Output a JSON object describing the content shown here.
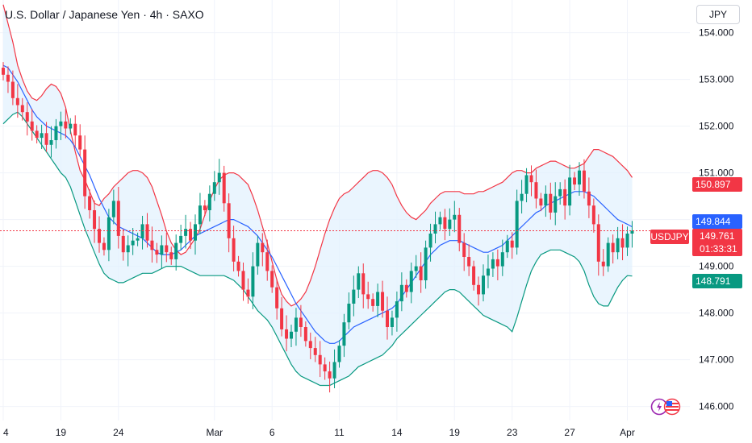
{
  "header": {
    "title": "U.S. Dollar / Japanese Yen · 4h · SAXO",
    "currency": "JPY"
  },
  "price_tags": {
    "upper_band": "150.897",
    "middle_band": "149.844",
    "symbol": "USDJPY",
    "last_price": "149.761",
    "countdown": "01:33:31",
    "lower_band": "148.791"
  },
  "colors": {
    "up": "#089981",
    "down": "#f23645",
    "upper_band": "#f23645",
    "middle_band": "#2962ff",
    "lower_band": "#089981",
    "band_fill": "#e3f2fd",
    "grid": "#f0f3fa",
    "axis_text": "#131722"
  },
  "chart_data": {
    "type": "candlestick",
    "title": "U.S. Dollar / Japanese Yen · 4h · SAXO",
    "ylim": [
      145.7,
      154.7
    ],
    "y_ticks": [
      154.0,
      153.0,
      152.0,
      151.0,
      150.0,
      149.0,
      148.0,
      147.0,
      146.0
    ],
    "y_tick_labels": [
      "154.000",
      "153.000",
      "152.000",
      "151.000",
      "150.000",
      "149.000",
      "148.000",
      "147.000",
      "146.000"
    ],
    "x_ticks": [
      {
        "label": "4",
        "index": 0
      },
      {
        "label": "19",
        "index": 12
      },
      {
        "label": "24",
        "index": 24
      },
      {
        "label": "Mar",
        "index": 44
      },
      {
        "label": "6",
        "index": 56
      },
      {
        "label": "11",
        "index": 70
      },
      {
        "label": "14",
        "index": 82
      },
      {
        "label": "19",
        "index": 94
      },
      {
        "label": "23",
        "index": 106
      },
      {
        "label": "27",
        "index": 118
      },
      {
        "label": "Apr",
        "index": 130
      }
    ],
    "grid": true,
    "current_price": 149.761,
    "candles_close": [
      153.1,
      152.95,
      152.6,
      152.45,
      152.3,
      152.1,
      151.9,
      151.75,
      151.85,
      151.6,
      151.7,
      152.0,
      152.1,
      151.95,
      152.05,
      151.8,
      151.5,
      150.5,
      150.2,
      149.8,
      149.5,
      149.35,
      150.05,
      150.4,
      149.65,
      149.3,
      149.45,
      149.55,
      149.6,
      149.9,
      149.55,
      149.35,
      149.25,
      149.45,
      149.3,
      149.15,
      149.5,
      149.65,
      149.8,
      149.55,
      149.9,
      150.3,
      150.2,
      150.55,
      150.8,
      151.0,
      150.35,
      149.6,
      149.1,
      148.9,
      148.5,
      148.35,
      149.0,
      149.5,
      149.3,
      148.9,
      148.55,
      148.1,
      147.65,
      147.45,
      147.6,
      147.9,
      147.7,
      147.4,
      147.25,
      147.1,
      146.9,
      146.75,
      146.6,
      146.95,
      147.3,
      147.8,
      148.2,
      148.5,
      148.85,
      148.4,
      148.3,
      148.15,
      148.45,
      148.05,
      147.7,
      147.9,
      148.25,
      148.6,
      148.45,
      148.9,
      149.0,
      148.7,
      149.4,
      149.7,
      149.9,
      150.05,
      149.8,
      150.0,
      150.1,
      149.5,
      149.2,
      149.0,
      148.6,
      148.4,
      148.8,
      148.95,
      149.15,
      149.0,
      149.3,
      149.55,
      149.4,
      150.4,
      150.55,
      150.95,
      150.8,
      150.45,
      150.3,
      150.55,
      150.15,
      150.5,
      150.65,
      150.3,
      150.9,
      150.75,
      151.05,
      150.6,
      150.3,
      149.9,
      149.1,
      149.0,
      149.5,
      149.3,
      149.6,
      149.4,
      149.7,
      149.761
    ],
    "upper_band": [
      154.6,
      154.2,
      153.8,
      153.3,
      153.0,
      152.75,
      152.6,
      152.55,
      152.65,
      152.8,
      152.9,
      152.85,
      152.7,
      152.4,
      151.9,
      151.45,
      151.05,
      150.85,
      150.6,
      150.35,
      150.3,
      150.45,
      150.55,
      150.7,
      150.8,
      150.9,
      151.0,
      151.05,
      151.05,
      151.0,
      150.9,
      150.7,
      150.4,
      150.1,
      149.75,
      149.5,
      149.35,
      149.25,
      149.3,
      149.45,
      149.6,
      149.8,
      150.1,
      150.4,
      150.65,
      150.85,
      150.95,
      151.0,
      151.0,
      150.95,
      150.85,
      150.75,
      150.5,
      150.2,
      149.85,
      149.5,
      149.1,
      148.7,
      148.4,
      148.25,
      148.15,
      148.2,
      148.3,
      148.45,
      148.7,
      149.0,
      149.35,
      149.7,
      150.0,
      150.25,
      150.45,
      150.55,
      150.6,
      150.7,
      150.8,
      150.9,
      151.0,
      151.05,
      151.05,
      151.0,
      150.9,
      150.75,
      150.5,
      150.3,
      150.15,
      150.05,
      150.0,
      150.1,
      150.2,
      150.35,
      150.45,
      150.55,
      150.6,
      150.6,
      150.6,
      150.6,
      150.55,
      150.55,
      150.55,
      150.6,
      150.6,
      150.65,
      150.7,
      150.75,
      150.8,
      150.9,
      151.0,
      151.05,
      151.05,
      151.0,
      151.0,
      151.1,
      151.15,
      151.2,
      151.25,
      151.25,
      151.2,
      151.15,
      151.1,
      151.1,
      151.15,
      151.2,
      151.35,
      151.5,
      151.5,
      151.45,
      151.4,
      151.35,
      151.25,
      151.15,
      151.05,
      150.9
    ],
    "middle_band": [
      153.3,
      153.25,
      153.1,
      152.95,
      152.75,
      152.55,
      152.35,
      152.2,
      152.1,
      152.0,
      151.95,
      151.9,
      151.85,
      151.8,
      151.7,
      151.55,
      151.35,
      151.15,
      150.95,
      150.7,
      150.45,
      150.25,
      150.05,
      149.95,
      149.85,
      149.8,
      149.75,
      149.7,
      149.65,
      149.6,
      149.5,
      149.4,
      149.3,
      149.25,
      149.25,
      149.25,
      149.3,
      149.35,
      149.45,
      149.55,
      149.65,
      149.7,
      149.75,
      149.8,
      149.85,
      149.9,
      149.95,
      150.0,
      150.0,
      149.95,
      149.9,
      149.85,
      149.75,
      149.65,
      149.5,
      149.35,
      149.2,
      149.0,
      148.8,
      148.6,
      148.4,
      148.2,
      148.05,
      147.9,
      147.75,
      147.6,
      147.5,
      147.4,
      147.35,
      147.35,
      147.4,
      147.5,
      147.6,
      147.7,
      147.75,
      147.8,
      147.85,
      147.9,
      147.95,
      148.0,
      148.05,
      148.1,
      148.2,
      148.35,
      148.5,
      148.65,
      148.8,
      148.95,
      149.1,
      149.25,
      149.35,
      149.45,
      149.5,
      149.55,
      149.55,
      149.55,
      149.5,
      149.45,
      149.4,
      149.35,
      149.3,
      149.3,
      149.35,
      149.4,
      149.45,
      149.55,
      149.65,
      149.75,
      149.85,
      149.95,
      150.05,
      150.15,
      150.2,
      150.3,
      150.35,
      150.4,
      150.45,
      150.5,
      150.55,
      150.6,
      150.6,
      150.6,
      150.55,
      150.5,
      150.4,
      150.3,
      150.2,
      150.1,
      150.0,
      149.95,
      149.9,
      149.844
    ],
    "lower_band": [
      152.05,
      152.15,
      152.25,
      152.3,
      152.2,
      152.05,
      151.9,
      151.75,
      151.6,
      151.45,
      151.3,
      151.15,
      151.0,
      150.9,
      150.7,
      150.4,
      150.1,
      149.8,
      149.55,
      149.3,
      149.05,
      148.85,
      148.75,
      148.7,
      148.65,
      148.65,
      148.7,
      148.75,
      148.8,
      148.85,
      148.85,
      148.85,
      148.9,
      148.95,
      149.0,
      149.0,
      149.0,
      149.0,
      148.95,
      148.9,
      148.85,
      148.8,
      148.8,
      148.8,
      148.8,
      148.8,
      148.8,
      148.75,
      148.7,
      148.6,
      148.5,
      148.35,
      148.2,
      148.05,
      147.95,
      147.85,
      147.7,
      147.5,
      147.3,
      147.1,
      146.9,
      146.75,
      146.65,
      146.6,
      146.55,
      146.5,
      146.45,
      146.45,
      146.45,
      146.5,
      146.55,
      146.6,
      146.65,
      146.75,
      146.85,
      146.9,
      146.95,
      147.0,
      147.05,
      147.1,
      147.2,
      147.3,
      147.45,
      147.55,
      147.65,
      147.75,
      147.85,
      147.95,
      148.05,
      148.15,
      148.25,
      148.35,
      148.45,
      148.5,
      148.5,
      148.45,
      148.35,
      148.25,
      148.15,
      148.05,
      147.95,
      147.9,
      147.85,
      147.8,
      147.75,
      147.7,
      147.6,
      147.9,
      148.25,
      148.6,
      148.9,
      149.1,
      149.25,
      149.3,
      149.35,
      149.35,
      149.35,
      149.3,
      149.25,
      149.2,
      149.1,
      148.9,
      148.6,
      148.35,
      148.2,
      148.15,
      148.15,
      148.35,
      148.55,
      148.7,
      148.8,
      148.791
    ]
  }
}
